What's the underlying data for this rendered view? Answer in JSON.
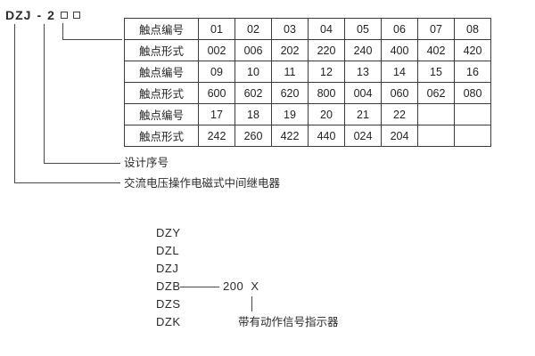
{
  "diagram": {
    "model_code": {
      "prefix": "DZJ",
      "separator": "-",
      "series": "2"
    },
    "contact_table": {
      "rows": [
        {
          "label": "触点编号",
          "cells": [
            "01",
            "02",
            "03",
            "04",
            "05",
            "06",
            "07",
            "08"
          ]
        },
        {
          "label": "触点形式",
          "cells": [
            "002",
            "006",
            "202",
            "220",
            "240",
            "400",
            "402",
            "420"
          ]
        },
        {
          "label": "触点编号",
          "cells": [
            "09",
            "10",
            "11",
            "12",
            "13",
            "14",
            "15",
            "16"
          ]
        },
        {
          "label": "触点形式",
          "cells": [
            "600",
            "602",
            "620",
            "800",
            "004",
            "060",
            "062",
            "080"
          ]
        },
        {
          "label": "触点编号",
          "cells": [
            "17",
            "18",
            "19",
            "20",
            "21",
            "22",
            "",
            ""
          ]
        },
        {
          "label": "触点形式",
          "cells": [
            "242",
            "260",
            "422",
            "440",
            "024",
            "204",
            "",
            ""
          ]
        }
      ]
    },
    "callouts": {
      "design_serial": "设计序号",
      "product_name": "交流电压操作电磁式中间继电器"
    },
    "type_series": {
      "items": [
        "DZY",
        "DZL",
        "DZJ",
        "DZB",
        "DZS",
        "DZK"
      ],
      "dzb_value": "200  X",
      "indicator_note": "带有动作信号指示器"
    },
    "colors": {
      "text": "#2b2b2b",
      "line": "#484848",
      "background": "#ffffff"
    }
  }
}
